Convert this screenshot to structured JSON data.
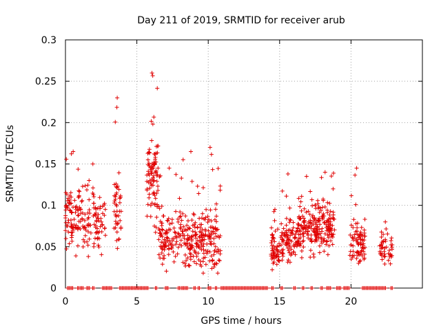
{
  "chart_data": {
    "type": "scatter",
    "title": "Day 211 of 2019, SRMTID for receiver arub",
    "xlabel": "GPS time / hours",
    "ylabel": "SRMTID / TECUs",
    "xlim": [
      0,
      25
    ],
    "ylim": [
      0,
      0.3
    ],
    "xticks": [
      0,
      5,
      10,
      15,
      20
    ],
    "xtick_labels": [
      "0",
      "5",
      "10",
      "15",
      "20"
    ],
    "yticks": [
      0,
      0.05,
      0.1,
      0.15,
      0.2,
      0.25,
      0.3
    ],
    "ytick_labels": [
      "0",
      "0.05",
      "0.1",
      "0.15",
      "0.2",
      "0.25",
      "0.3"
    ],
    "grid": true,
    "marker_color": "#e00000",
    "series": [
      {
        "name": "SRMTID",
        "marker": "+",
        "clusters": [
          {
            "x_range": [
              0.0,
              1.2
            ],
            "y_center": 0.085,
            "y_spread": 0.03,
            "y_max": 0.165,
            "count": 90
          },
          {
            "x_range": [
              1.2,
              2.8
            ],
            "y_center": 0.08,
            "y_spread": 0.03,
            "y_max": 0.15,
            "count": 90
          },
          {
            "x_range": [
              3.4,
              3.9
            ],
            "y_center": 0.1,
            "y_spread": 0.04,
            "y_max": 0.23,
            "count": 45
          },
          {
            "x_range": [
              5.7,
              6.5
            ],
            "y_center": 0.13,
            "y_spread": 0.05,
            "y_max": 0.26,
            "count": 90
          },
          {
            "x_range": [
              6.5,
              8.2
            ],
            "y_center": 0.06,
            "y_spread": 0.025,
            "y_max": 0.145,
            "count": 110
          },
          {
            "x_range": [
              8.2,
              9.5
            ],
            "y_center": 0.055,
            "y_spread": 0.025,
            "y_max": 0.165,
            "count": 100
          },
          {
            "x_range": [
              9.5,
              10.9
            ],
            "y_center": 0.06,
            "y_spread": 0.03,
            "y_max": 0.17,
            "count": 110
          },
          {
            "x_range": [
              14.4,
              15.0
            ],
            "y_center": 0.045,
            "y_spread": 0.02,
            "y_max": 0.095,
            "count": 55
          },
          {
            "x_range": [
              15.0,
              16.3
            ],
            "y_center": 0.055,
            "y_spread": 0.02,
            "y_max": 0.138,
            "count": 95
          },
          {
            "x_range": [
              16.3,
              17.6
            ],
            "y_center": 0.07,
            "y_spread": 0.025,
            "y_max": 0.135,
            "count": 110
          },
          {
            "x_range": [
              17.6,
              18.9
            ],
            "y_center": 0.075,
            "y_spread": 0.025,
            "y_max": 0.14,
            "count": 110
          },
          {
            "x_range": [
              19.9,
              21.0
            ],
            "y_center": 0.055,
            "y_spread": 0.02,
            "y_max": 0.145,
            "count": 80
          },
          {
            "x_range": [
              22.0,
              22.9
            ],
            "y_center": 0.045,
            "y_spread": 0.015,
            "y_max": 0.08,
            "count": 45
          }
        ],
        "zero_segments": [
          [
            0.15,
            0.55
          ],
          [
            0.85,
            1.0
          ],
          [
            1.05,
            1.25
          ],
          [
            1.5,
            1.7
          ],
          [
            1.9,
            2.0
          ],
          [
            2.6,
            3.3
          ],
          [
            3.8,
            5.8
          ],
          [
            6.3,
            6.4
          ],
          [
            7.0,
            7.2
          ],
          [
            7.9,
            8.0
          ],
          [
            8.1,
            8.6
          ],
          [
            9.0,
            9.1
          ],
          [
            9.3,
            9.4
          ],
          [
            10.0,
            10.2
          ],
          [
            10.5,
            10.6
          ],
          [
            10.9,
            14.2
          ],
          [
            14.45,
            14.6
          ],
          [
            15.1,
            15.2
          ],
          [
            16.0,
            16.1
          ],
          [
            16.6,
            16.7
          ],
          [
            17.2,
            17.3
          ],
          [
            17.9,
            18.0
          ],
          [
            18.3,
            18.6
          ],
          [
            19.0,
            19.3
          ],
          [
            19.5,
            19.9
          ],
          [
            20.8,
            22.5
          ],
          [
            22.8,
            22.9
          ]
        ]
      }
    ]
  }
}
